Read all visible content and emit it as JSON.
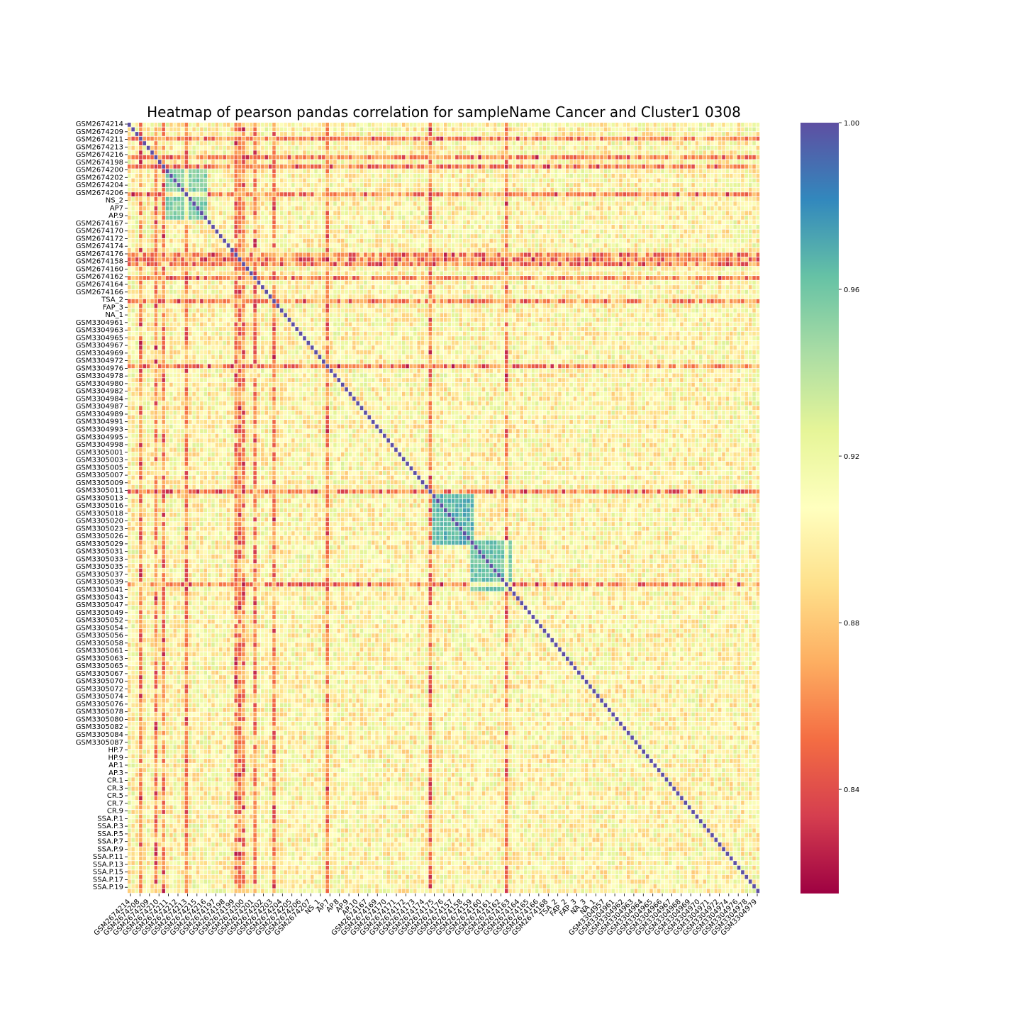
{
  "chart_data": {
    "type": "heatmap",
    "title": "Heatmap of pearson pandas correlation for sampleName Cancer and Cluster1 0308",
    "xlabel": "",
    "ylabel": "",
    "n_rows": 166,
    "n_cols": 166,
    "diagonal_value": 1.0,
    "value_range": [
      0.82,
      1.0
    ],
    "colormap": "Spectral",
    "grid": true,
    "row_labels": [
      "GSM2674214",
      "GSM2674209",
      "GSM2674211",
      "GSM2674213",
      "GSM2674216",
      "GSM2674198",
      "GSM2674200",
      "GSM2674202",
      "GSM2674204",
      "GSM2674206",
      "NS_2",
      "AP7",
      "AP.9",
      "GSM2674167",
      "GSM2674170",
      "GSM2674172",
      "GSM2674174",
      "GSM2674176",
      "GSM2674158",
      "GSM2674160",
      "GSM2674162",
      "GSM2674164",
      "GSM2674166",
      "TSA_2",
      "FAP_3",
      "NA_1",
      "GSM3304961",
      "GSM3304963",
      "GSM3304965",
      "GSM3304967",
      "GSM3304969",
      "GSM3304972",
      "GSM3304976",
      "GSM3304978",
      "GSM3304980",
      "GSM3304982",
      "GSM3304984",
      "GSM3304987",
      "GSM3304989",
      "GSM3304991",
      "GSM3304993",
      "GSM3304995",
      "GSM3304998",
      "GSM3305001",
      "GSM3305003",
      "GSM3305005",
      "GSM3305007",
      "GSM3305009",
      "GSM3305011",
      "GSM3305013",
      "GSM3305016",
      "GSM3305018",
      "GSM3305020",
      "GSM3305023",
      "GSM3305026",
      "GSM3305029",
      "GSM3305031",
      "GSM3305033",
      "GSM3305035",
      "GSM3305037",
      "GSM3305039",
      "GSM3305041",
      "GSM3305043",
      "GSM3305047",
      "GSM3305049",
      "GSM3305052",
      "GSM3305054",
      "GSM3305056",
      "GSM3305058",
      "GSM3305061",
      "GSM3305063",
      "GSM3305065",
      "GSM3305067",
      "GSM3305070",
      "GSM3305072",
      "GSM3305074",
      "GSM3305076",
      "GSM3305078",
      "GSM3305080",
      "GSM3305082",
      "GSM3305084",
      "GSM3305087",
      "HP.7",
      "HP.9",
      "AP.1",
      "AP.3",
      "CR.1",
      "CR.3",
      "CR.5",
      "CR.7",
      "CR.9",
      "SSA.P.1",
      "SSA.P.3",
      "SSA.P.5",
      "SSA.P.7",
      "SSA.P.9",
      "SSA.P.11",
      "SSA.P.13",
      "SSA.P.15",
      "SSA.P.17",
      "SSA.P.19"
    ],
    "col_labels": [
      "GSM2674214",
      "GSM2674208",
      "GSM2674209",
      "GSM2674210",
      "GSM2674211",
      "GSM2674212",
      "GSM2674213",
      "GSM2674215",
      "GSM2674216",
      "GSM2674197",
      "GSM2674198",
      "GSM2674199",
      "GSM2674200",
      "GSM2674201",
      "GSM2674202",
      "GSM2674203",
      "GSM2674204",
      "GSM2674205",
      "GSM2674206",
      "GSM2674207",
      "NS_1",
      "AP.7",
      "AP.8",
      "AP.9",
      "AP.10",
      "GSM2674167",
      "GSM2674169",
      "GSM2674170",
      "GSM2674171",
      "GSM2674172",
      "GSM2674173",
      "GSM2674174",
      "GSM2674175",
      "GSM2674176",
      "GSM2674157",
      "GSM2674158",
      "GSM2674159",
      "GSM2674160",
      "GSM2674161",
      "GSM2674162",
      "GSM2674163",
      "GSM2674164",
      "GSM2674165",
      "GSM2674166",
      "GSM2674168",
      "TSA_2",
      "FAP_2",
      "FAP_3",
      "NA_3",
      "NA_1",
      "GSM3304957",
      "GSM3304961",
      "GSM3304962",
      "GSM3304963",
      "GSM3304964",
      "GSM3304965",
      "GSM3304966",
      "GSM3304967",
      "GSM3304968",
      "GSM3304969",
      "GSM3304970",
      "GSM3304971",
      "GSM3304972",
      "GSM3304974",
      "GSM3304976",
      "GSM3304978",
      "GSM3304979"
    ],
    "colorbar": {
      "ticks": [
        "1.00",
        "0.96",
        "0.92",
        "0.88",
        "0.84"
      ],
      "tick_values": [
        1.0,
        0.96,
        0.92,
        0.88,
        0.84
      ],
      "range": [
        0.815,
        1.0
      ]
    },
    "blocks": [
      {
        "rows": [
          80,
          90
        ],
        "cols": [
          80,
          90
        ],
        "value": 0.965
      },
      {
        "rows": [
          10,
          20
        ],
        "cols": [
          10,
          20
        ],
        "value": 0.955
      },
      {
        "rows": [
          90,
          100
        ],
        "cols": [
          90,
          100
        ],
        "value": 0.96
      }
    ],
    "low_rows": [
      3,
      9,
      28,
      30,
      33,
      52,
      79,
      99
    ],
    "low_cols": [
      3,
      7,
      15,
      29,
      33,
      38
    ]
  }
}
